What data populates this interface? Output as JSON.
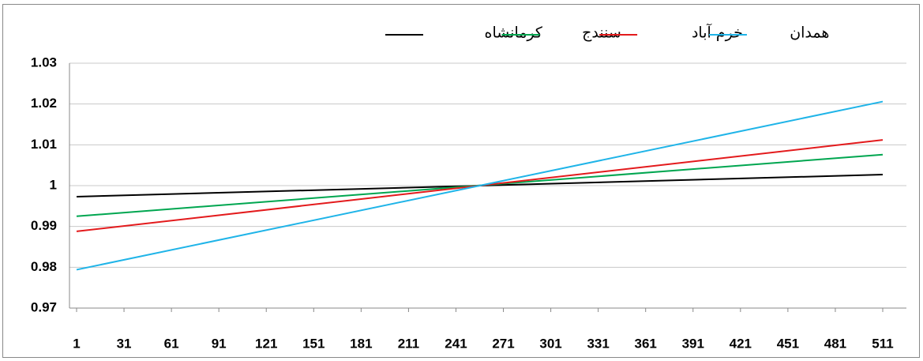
{
  "chart_data": {
    "type": "line",
    "x": [
      1,
      511
    ],
    "xlim": [
      1,
      511
    ],
    "xticks": [
      1,
      31,
      61,
      91,
      121,
      151,
      181,
      211,
      241,
      271,
      301,
      331,
      361,
      391,
      421,
      451,
      481,
      511
    ],
    "ylim": [
      0.97,
      1.03
    ],
    "yticks": [
      0.97,
      0.98,
      0.99,
      1,
      1.01,
      1.02,
      1.03
    ],
    "grid": true,
    "legend": "top",
    "series": [
      {
        "name": "کرمانشاه",
        "color": "#000000",
        "values": [
          0.9973,
          1.0027
        ]
      },
      {
        "name": "سنندج",
        "color": "#00a650",
        "values": [
          0.9925,
          1.0076
        ]
      },
      {
        "name": "خرم آباد",
        "color": "#e31a1c",
        "values": [
          0.9888,
          1.0112
        ]
      },
      {
        "name": "همدان",
        "color": "#1fb4e8",
        "values": [
          0.9794,
          1.0206
        ]
      }
    ]
  }
}
